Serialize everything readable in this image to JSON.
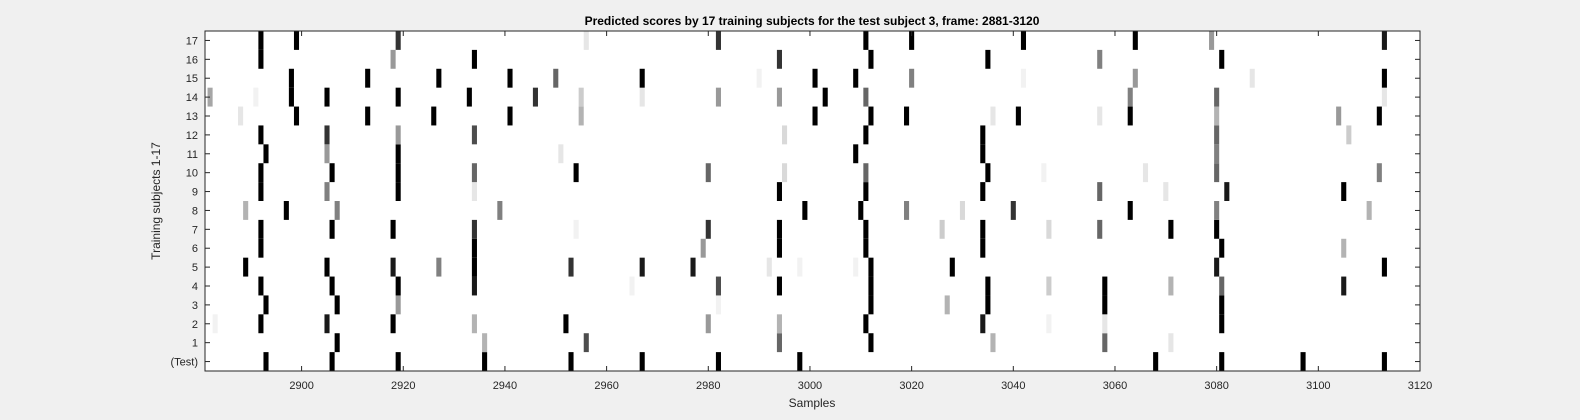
{
  "chart_data": {
    "type": "heatmap",
    "title": "Predicted scores by 17 training subjects for the test subject 3, frame: 2881-3120",
    "xlabel": "Samples",
    "ylabel": "Training subjects 1-17",
    "xlim": [
      2881,
      3120
    ],
    "x_ticks": [
      2900,
      2920,
      2940,
      2960,
      2980,
      3000,
      3020,
      3040,
      3060,
      3080,
      3100,
      3120
    ],
    "x_tick_labels": [
      "2900",
      "2920",
      "2940",
      "2960",
      "2980",
      "3000",
      "3020",
      "3040",
      "3060",
      "3080",
      "3100",
      "3120"
    ],
    "rows": [
      "(Test)",
      "1",
      "2",
      "3",
      "4",
      "5",
      "6",
      "7",
      "8",
      "9",
      "10",
      "11",
      "12",
      "13",
      "14",
      "15",
      "16",
      "17"
    ],
    "colormap": "gray (white = 0, black = 1)",
    "grid": false,
    "marks": [
      {
        "row": "(Test)",
        "points": [
          [
            2893,
            1
          ],
          [
            2906,
            1
          ],
          [
            2919,
            1
          ],
          [
            2936,
            1
          ],
          [
            2953,
            1
          ],
          [
            2967,
            1
          ],
          [
            2982,
            1
          ],
          [
            2998,
            1
          ],
          [
            3068,
            1
          ],
          [
            3081,
            1
          ],
          [
            3097,
            1
          ],
          [
            3113,
            1
          ]
        ]
      },
      {
        "row": "1",
        "points": [
          [
            2907,
            1
          ],
          [
            2936,
            0.3
          ],
          [
            2956,
            0.7
          ],
          [
            2994,
            0.6
          ],
          [
            3012,
            1
          ],
          [
            3036,
            0.3
          ],
          [
            3058,
            0.6
          ],
          [
            3071,
            0.1
          ]
        ]
      },
      {
        "row": "2",
        "points": [
          [
            2883,
            0.05
          ],
          [
            2892,
            1
          ],
          [
            2905,
            0.9
          ],
          [
            2918,
            1
          ],
          [
            2934,
            0.3
          ],
          [
            2952,
            1
          ],
          [
            2980,
            0.4
          ],
          [
            2994,
            0.3
          ],
          [
            3011,
            1
          ],
          [
            3034,
            0.9
          ],
          [
            3047,
            0.05
          ],
          [
            3058,
            0.1
          ],
          [
            3081,
            1
          ]
        ]
      },
      {
        "row": "3",
        "points": [
          [
            2893,
            1
          ],
          [
            2907,
            1
          ],
          [
            2919,
            0.4
          ],
          [
            2982,
            0.05
          ],
          [
            3012,
            1
          ],
          [
            3027,
            0.3
          ],
          [
            3035,
            1
          ],
          [
            3058,
            1
          ],
          [
            3081,
            1
          ]
        ]
      },
      {
        "row": "4",
        "points": [
          [
            2892,
            1
          ],
          [
            2906,
            1
          ],
          [
            2919,
            1
          ],
          [
            2934,
            0.9
          ],
          [
            2965,
            0.05
          ],
          [
            2982,
            0.7
          ],
          [
            2994,
            1
          ],
          [
            3012,
            1
          ],
          [
            3035,
            1
          ],
          [
            3047,
            0.2
          ],
          [
            3058,
            1
          ],
          [
            3071,
            0.3
          ],
          [
            3081,
            0.6
          ],
          [
            3105,
            0.9
          ]
        ]
      },
      {
        "row": "5",
        "points": [
          [
            2889,
            1
          ],
          [
            2905,
            1
          ],
          [
            2918,
            0.9
          ],
          [
            2927,
            0.5
          ],
          [
            2934,
            1
          ],
          [
            2953,
            0.8
          ],
          [
            2967,
            0.9
          ],
          [
            2977,
            0.9
          ],
          [
            2992,
            0.1
          ],
          [
            2998,
            0.05
          ],
          [
            3009,
            0.05
          ],
          [
            3012,
            1
          ],
          [
            3028,
            1
          ],
          [
            3080,
            0.9
          ],
          [
            3113,
            1
          ]
        ]
      },
      {
        "row": "6",
        "points": [
          [
            2892,
            1
          ],
          [
            2934,
            1
          ],
          [
            2979,
            0.4
          ],
          [
            2994,
            1
          ],
          [
            3011,
            1
          ],
          [
            3034,
            1
          ],
          [
            3081,
            1
          ],
          [
            3105,
            0.3
          ]
        ]
      },
      {
        "row": "7",
        "points": [
          [
            2892,
            1
          ],
          [
            2906,
            1
          ],
          [
            2918,
            1
          ],
          [
            2934,
            0.8
          ],
          [
            2954,
            0.05
          ],
          [
            2980,
            0.8
          ],
          [
            2994,
            1
          ],
          [
            3011,
            1
          ],
          [
            3026,
            0.2
          ],
          [
            3034,
            1
          ],
          [
            3047,
            0.15
          ],
          [
            3057,
            0.6
          ],
          [
            3071,
            1
          ],
          [
            3080,
            1
          ]
        ]
      },
      {
        "row": "8",
        "points": [
          [
            2889,
            0.3
          ],
          [
            2897,
            1
          ],
          [
            2907,
            0.5
          ],
          [
            2939,
            0.5
          ],
          [
            2999,
            1
          ],
          [
            3010,
            1
          ],
          [
            3019,
            0.5
          ],
          [
            3030,
            0.15
          ],
          [
            3040,
            0.8
          ],
          [
            3063,
            1
          ],
          [
            3080,
            0.5
          ],
          [
            3110,
            0.3
          ]
        ]
      },
      {
        "row": "9",
        "points": [
          [
            2892,
            1
          ],
          [
            2905,
            0.5
          ],
          [
            2919,
            1
          ],
          [
            2934,
            0.1
          ],
          [
            2994,
            1
          ],
          [
            3011,
            1
          ],
          [
            3034,
            1
          ],
          [
            3057,
            0.6
          ],
          [
            3070,
            0.1
          ],
          [
            3082,
            0.9
          ],
          [
            3105,
            1
          ]
        ]
      },
      {
        "row": "10",
        "points": [
          [
            2892,
            1
          ],
          [
            2906,
            1
          ],
          [
            2919,
            1
          ],
          [
            2934,
            0.6
          ],
          [
            2954,
            1
          ],
          [
            2980,
            0.6
          ],
          [
            2995,
            0.15
          ],
          [
            3011,
            0.6
          ],
          [
            3035,
            1
          ],
          [
            3046,
            0.05
          ],
          [
            3066,
            0.1
          ],
          [
            3080,
            0.6
          ],
          [
            3112,
            0.5
          ]
        ]
      },
      {
        "row": "11",
        "points": [
          [
            2893,
            1
          ],
          [
            2905,
            0.4
          ],
          [
            2919,
            1
          ],
          [
            2951,
            0.1
          ],
          [
            3009,
            1
          ],
          [
            3034,
            1
          ],
          [
            3080,
            0.5
          ]
        ]
      },
      {
        "row": "12",
        "points": [
          [
            2892,
            1
          ],
          [
            2905,
            0.8
          ],
          [
            2919,
            0.4
          ],
          [
            2934,
            0.7
          ],
          [
            2995,
            0.15
          ],
          [
            3011,
            1
          ],
          [
            3034,
            1
          ],
          [
            3080,
            0.6
          ],
          [
            3106,
            0.2
          ]
        ]
      },
      {
        "row": "13",
        "points": [
          [
            2888,
            0.1
          ],
          [
            2899,
            1
          ],
          [
            2913,
            1
          ],
          [
            2926,
            1
          ],
          [
            2941,
            1
          ],
          [
            2955,
            0.3
          ],
          [
            3001,
            1
          ],
          [
            3012,
            1
          ],
          [
            3019,
            1
          ],
          [
            3036,
            0.1
          ],
          [
            3041,
            1
          ],
          [
            3057,
            0.1
          ],
          [
            3063,
            1
          ],
          [
            3080,
            0.3
          ],
          [
            3104,
            0.4
          ],
          [
            3112,
            1
          ]
        ]
      },
      {
        "row": "14",
        "points": [
          [
            2882,
            0.35
          ],
          [
            2891,
            0.05
          ],
          [
            2898,
            1
          ],
          [
            2905,
            1
          ],
          [
            2919,
            1
          ],
          [
            2933,
            1
          ],
          [
            2946,
            0.8
          ],
          [
            2955,
            0.2
          ],
          [
            2967,
            0.1
          ],
          [
            2982,
            0.4
          ],
          [
            2994,
            0.4
          ],
          [
            3003,
            1
          ],
          [
            3011,
            0.6
          ],
          [
            3063,
            0.5
          ],
          [
            3080,
            0.6
          ],
          [
            3113,
            0.1
          ]
        ]
      },
      {
        "row": "15",
        "points": [
          [
            2898,
            1
          ],
          [
            2913,
            1
          ],
          [
            2927,
            1
          ],
          [
            2941,
            1
          ],
          [
            2950,
            0.6
          ],
          [
            2967,
            1
          ],
          [
            2990,
            0.05
          ],
          [
            3001,
            1
          ],
          [
            3009,
            1
          ],
          [
            3020,
            0.5
          ],
          [
            3042,
            0.05
          ],
          [
            3064,
            0.4
          ],
          [
            3087,
            0.1
          ],
          [
            3113,
            1
          ]
        ]
      },
      {
        "row": "16",
        "points": [
          [
            2892,
            1
          ],
          [
            2918,
            0.4
          ],
          [
            2934,
            1
          ],
          [
            2994,
            0.8
          ],
          [
            3012,
            1
          ],
          [
            3035,
            1
          ],
          [
            3057,
            0.5
          ],
          [
            3081,
            1
          ]
        ]
      },
      {
        "row": "17",
        "points": [
          [
            2892,
            1
          ],
          [
            2899,
            1
          ],
          [
            2919,
            0.8
          ],
          [
            2956,
            0.1
          ],
          [
            2982,
            0.8
          ],
          [
            3011,
            1
          ],
          [
            3020,
            1
          ],
          [
            3042,
            1
          ],
          [
            3064,
            1
          ],
          [
            3079,
            0.4
          ],
          [
            3113,
            0.9
          ]
        ]
      }
    ]
  }
}
